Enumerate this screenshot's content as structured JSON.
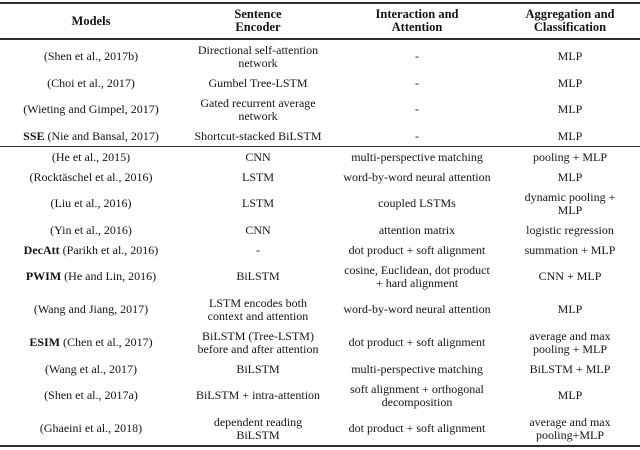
{
  "table": {
    "headers": [
      "Models",
      "Sentence\nEncoder",
      "Interaction and\nAttention",
      "Aggregation and\nClassification"
    ],
    "rows": [
      {
        "model_bold": "",
        "model": "(Shen et al., 2017b)",
        "encoder": "Directional self-attention\nnetwork",
        "interaction": "-",
        "aggregation": "MLP"
      },
      {
        "model_bold": "",
        "model": "(Choi et al., 2017)",
        "encoder": "Gumbel Tree-LSTM",
        "interaction": "-",
        "aggregation": "MLP"
      },
      {
        "model_bold": "",
        "model": "(Wieting and Gimpel, 2017)",
        "encoder": "Gated recurrent average\nnetwork",
        "interaction": "-",
        "aggregation": "MLP"
      },
      {
        "model_bold": "SSE",
        "model": " (Nie and Bansal, 2017)",
        "encoder": "Shortcut-stacked BiLSTM",
        "interaction": "-",
        "aggregation": "MLP"
      },
      {
        "model_bold": "",
        "model": "(He et al., 2015)",
        "encoder": "CNN",
        "interaction": "multi-perspective matching",
        "aggregation": "pooling + MLP"
      },
      {
        "model_bold": "",
        "model": "(Rocktäschel et al., 2016)",
        "encoder": "LSTM",
        "interaction": "word-by-word neural attention",
        "aggregation": "MLP"
      },
      {
        "model_bold": "",
        "model": "(Liu et al., 2016)",
        "encoder": "LSTM",
        "interaction": "coupled LSTMs",
        "aggregation": "dynamic pooling +\nMLP"
      },
      {
        "model_bold": "",
        "model": "(Yin et al., 2016)",
        "encoder": "CNN",
        "interaction": "attention matrix",
        "aggregation": "logistic regression"
      },
      {
        "model_bold": "DecAtt",
        "model": " (Parikh et al., 2016)",
        "encoder": "-",
        "interaction": "dot product + soft alignment",
        "aggregation": "summation + MLP"
      },
      {
        "model_bold": "PWIM",
        "model": " (He and Lin, 2016)",
        "encoder": "BiLSTM",
        "interaction": "cosine, Euclidean, dot product\n+ hard alignment",
        "aggregation": "CNN + MLP"
      },
      {
        "model_bold": "",
        "model": "(Wang and Jiang, 2017)",
        "encoder": "LSTM encodes both\ncontext and attention",
        "interaction": "word-by-word neural attention",
        "aggregation": "MLP"
      },
      {
        "model_bold": "ESIM",
        "model": " (Chen et al., 2017)",
        "encoder": "BiLSTM (Tree-LSTM)\nbefore and after attention",
        "interaction": "dot product + soft alignment",
        "aggregation": "average and max\npooling + MLP"
      },
      {
        "model_bold": "",
        "model": "(Wang et al., 2017)",
        "encoder": "BiLSTM",
        "interaction": "multi-perspective matching",
        "aggregation": "BiLSTM + MLP"
      },
      {
        "model_bold": "",
        "model": "(Shen et al., 2017a)",
        "encoder": "BiLSTM + intra-attention",
        "interaction": "soft alignment + orthogonal\ndecomposition",
        "aggregation": "MLP"
      },
      {
        "model_bold": "",
        "model": "(Ghaeini et al., 2018)",
        "encoder": "dependent reading\nBiLSTM",
        "interaction": "dot product + soft alignment",
        "aggregation": "average and max\npooling+MLP"
      }
    ],
    "rule_color": "#2e2e2e",
    "text_color": "#141414"
  }
}
